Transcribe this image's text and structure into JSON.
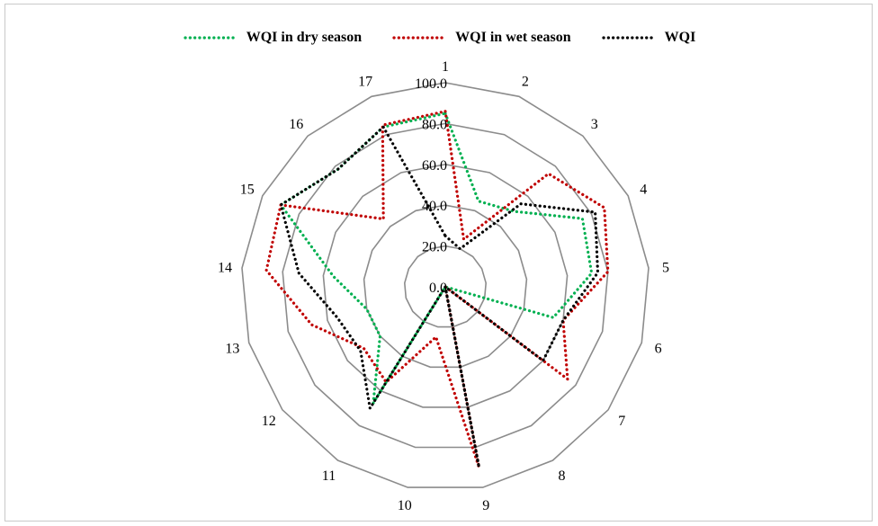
{
  "chart_data": {
    "type": "radar",
    "categories": [
      "1",
      "2",
      "3",
      "4",
      "5",
      "6",
      "7",
      "8",
      "9",
      "10",
      "11",
      "12",
      "13",
      "14",
      "15",
      "16",
      "17"
    ],
    "radial_ticks": [
      "0.0",
      "20.0",
      "40.0",
      "60.0",
      "80.0",
      "100.0"
    ],
    "rlim": [
      0,
      100
    ],
    "grid": true,
    "legend_position": "top",
    "series": [
      {
        "name": "WQI in dry season",
        "color": "#00b050",
        "values": [
          85,
          45,
          50,
          75,
          72,
          55,
          0,
          0,
          0,
          0,
          67,
          40,
          40,
          55,
          90,
          78,
          84
        ]
      },
      {
        "name": "WQI in wet season",
        "color": "#c00000",
        "values": [
          86,
          25,
          75,
          87,
          80,
          60,
          75,
          0,
          90,
          25,
          55,
          50,
          68,
          88,
          90,
          45,
          85
        ]
      },
      {
        "name": "WQI",
        "color": "#000000",
        "values": [
          25,
          20,
          55,
          82,
          75,
          60,
          60,
          0,
          90,
          0,
          70,
          52,
          55,
          72,
          90,
          78,
          84
        ]
      }
    ]
  }
}
